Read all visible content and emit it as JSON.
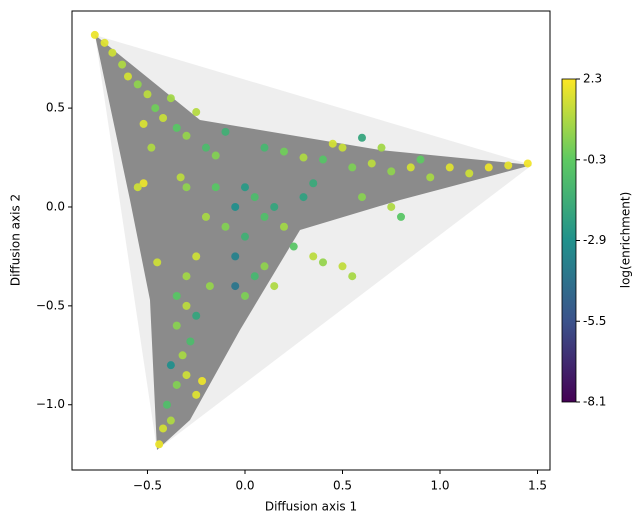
{
  "chart_data": {
    "type": "scatter",
    "xlabel": "Diffusion axis 1",
    "ylabel": "Diffusion axis 2",
    "colorbar_label": "log(enrichment)",
    "colormap": "viridis",
    "xlim": [
      -0.887,
      1.564
    ],
    "ylim": [
      -1.33,
      0.991
    ],
    "clim": [
      -8.1,
      2.3
    ],
    "xticks": [
      {
        "value": -0.5,
        "label": "−0.5"
      },
      {
        "value": 0,
        "label": "0.0"
      },
      {
        "value": 0.5,
        "label": "0.5"
      },
      {
        "value": 1,
        "label": "1.0"
      },
      {
        "value": 1.5,
        "label": "1.5"
      }
    ],
    "yticks": [
      {
        "value": -1,
        "label": "−1.0"
      },
      {
        "value": -0.5,
        "label": "−0.5"
      },
      {
        "value": 0,
        "label": "0.0"
      },
      {
        "value": 0.5,
        "label": "0.5"
      }
    ],
    "cticks": [
      -8.1,
      -5.5,
      -2.9,
      -0.3,
      2.3
    ],
    "x": [
      -0.77,
      -0.72,
      -0.68,
      -0.63,
      -0.6,
      -0.55,
      -0.5,
      -0.46,
      -0.42,
      -0.38,
      -0.35,
      -0.3,
      -0.25,
      -0.2,
      -0.15,
      -0.1,
      -0.52,
      -0.48,
      -0.52,
      -0.55,
      -0.3,
      -0.33,
      0.1,
      0.2,
      0.3,
      0.4,
      0.5,
      0.55,
      0.65,
      0.75,
      0.85,
      0.95,
      1.05,
      1.15,
      1.25,
      1.35,
      1.45,
      0.6,
      0.7,
      0.45,
      0.9,
      0.35,
      0.6,
      0.75,
      0.8,
      0.0,
      0.05,
      -0.05,
      0.1,
      0.15,
      -0.1,
      0.0,
      0.2,
      0.25,
      -0.05,
      0.1,
      0.05,
      0.15,
      -0.15,
      0.3,
      -0.2,
      0.35,
      0.4,
      0.5,
      0.55,
      0.0,
      -0.05,
      -0.25,
      -0.3,
      -0.35,
      -0.3,
      -0.25,
      -0.35,
      -0.28,
      -0.32,
      -0.38,
      -0.3,
      -0.35,
      -0.25,
      -0.4,
      -0.38,
      -0.42,
      -0.44,
      -0.22,
      -0.45,
      -0.18
    ],
    "y": [
      0.87,
      0.83,
      0.78,
      0.72,
      0.66,
      0.62,
      0.57,
      0.5,
      0.45,
      0.55,
      0.4,
      0.36,
      0.48,
      0.3,
      0.26,
      0.38,
      0.42,
      0.3,
      0.12,
      0.1,
      0.1,
      0.15,
      0.3,
      0.28,
      0.25,
      0.24,
      0.3,
      0.2,
      0.22,
      0.18,
      0.2,
      0.15,
      0.2,
      0.17,
      0.2,
      0.21,
      0.22,
      0.35,
      0.3,
      0.32,
      0.24,
      0.12,
      0.05,
      0.0,
      -0.05,
      0.1,
      0.05,
      0.0,
      -0.05,
      0.0,
      -0.1,
      -0.15,
      -0.1,
      -0.2,
      -0.25,
      -0.3,
      -0.35,
      -0.4,
      0.1,
      0.05,
      -0.05,
      -0.25,
      -0.28,
      -0.3,
      -0.35,
      -0.45,
      -0.4,
      -0.25,
      -0.35,
      -0.45,
      -0.5,
      -0.55,
      -0.6,
      -0.68,
      -0.75,
      -0.8,
      -0.85,
      -0.9,
      -0.95,
      -1.0,
      -1.08,
      -1.12,
      -1.2,
      -0.88,
      -0.28,
      -0.4
    ],
    "c": [
      2.0,
      1.8,
      1.5,
      1.0,
      1.6,
      0.5,
      1.2,
      0.0,
      1.4,
      0.8,
      -0.5,
      0.6,
      1.1,
      -1.0,
      0.3,
      -1.5,
      1.7,
      1.0,
      2.0,
      1.5,
      0.5,
      1.2,
      -1.2,
      0.0,
      1.0,
      -0.6,
      1.4,
      0.2,
      1.2,
      0.5,
      1.6,
      0.9,
      1.8,
      1.5,
      2.0,
      1.9,
      2.1,
      -2.0,
      0.8,
      1.6,
      -0.3,
      -1.8,
      0.4,
      1.0,
      -0.5,
      -2.5,
      -1.0,
      -3.0,
      -0.8,
      -2.0,
      0.3,
      -1.5,
      0.8,
      -0.5,
      -3.5,
      0.5,
      -1.2,
      1.0,
      -0.5,
      -2.2,
      0.9,
      1.2,
      0.6,
      1.3,
      0.9,
      0.2,
      -4.0,
      1.5,
      0.8,
      -0.5,
      1.2,
      -2.0,
      0.4,
      -1.0,
      0.9,
      -3.0,
      1.5,
      0.3,
      1.8,
      -0.8,
      1.0,
      1.6,
      2.0,
      2.0,
      1.5,
      0.6
    ]
  }
}
